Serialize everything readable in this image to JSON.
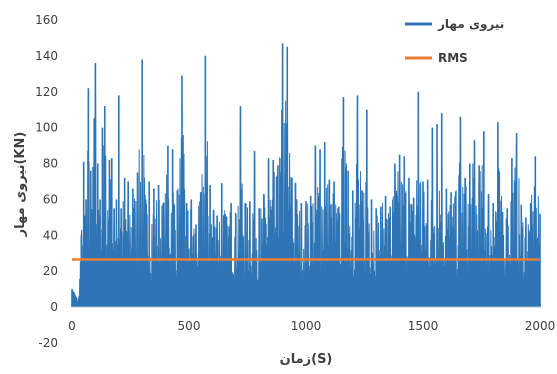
{
  "chart_data": {
    "type": "line",
    "xlabel": "زمان(S)",
    "ylabel": "نیروی مهار(KN)",
    "xlim": [
      0,
      2000
    ],
    "ylim": [
      -20,
      160
    ],
    "x_ticks": [
      "0",
      "500",
      "1000",
      "1500",
      "2000"
    ],
    "y_ticks": [
      "-20",
      "0",
      "20",
      "40",
      "60",
      "80",
      "100",
      "120",
      "140",
      "160"
    ],
    "grid": false,
    "legend_position": "top-right",
    "colors": {
      "series": "#2E75B6",
      "rms": "#ED7D31"
    },
    "series": [
      {
        "name": "نیروی مهار",
        "x": [
          0,
          10,
          20,
          25,
          30,
          40,
          50,
          55,
          60,
          70,
          80,
          90,
          95,
          100,
          110,
          115,
          120,
          130,
          140,
          160,
          170,
          180,
          190,
          200,
          210,
          225,
          240,
          260,
          280,
          300,
          315,
          330,
          350,
          370,
          390,
          410,
          430,
          450,
          470,
          490,
          510,
          530,
          550,
          570,
          590,
          605,
          620,
          640,
          660,
          680,
          700,
          720,
          740,
          760,
          780,
          800,
          820,
          840,
          860,
          880,
          900,
          920,
          940,
          955,
          960,
          980,
          1000,
          1020,
          1040,
          1060,
          1080,
          1100,
          1120,
          1140,
          1160,
          1180,
          1200,
          1220,
          1240,
          1260,
          1280,
          1300,
          1320,
          1340,
          1360,
          1380,
          1400,
          1420,
          1440,
          1460,
          1480,
          1500,
          1520,
          1540,
          1560,
          1580,
          1600,
          1620,
          1640,
          1660,
          1680,
          1700,
          1720,
          1740,
          1760,
          1780,
          1800,
          1820,
          1840,
          1860,
          1880,
          1900,
          1920,
          1940,
          1960,
          1980,
          2000
        ],
        "peaks": [
          10,
          8,
          5,
          3,
          6,
          40,
          81,
          51,
          60,
          122,
          76,
          78,
          105,
          136,
          80,
          50,
          60,
          100,
          112,
          82,
          83,
          55,
          60,
          118,
          55,
          72,
          70,
          66,
          75,
          138,
          60,
          70,
          66,
          68,
          58,
          90,
          88,
          65,
          129,
          58,
          60,
          46,
          64,
          140,
          68,
          54,
          51,
          69,
          50,
          58,
          52,
          112,
          58,
          59,
          87,
          55,
          63,
          83,
          82,
          79,
          147,
          145,
          72,
          69,
          60,
          58,
          59,
          62,
          90,
          88,
          92,
          71,
          70,
          56,
          117,
          76,
          65,
          118,
          65,
          110,
          60,
          55,
          56,
          62,
          56,
          80,
          85,
          84,
          72,
          61,
          120,
          70,
          71,
          100,
          102,
          108,
          66,
          64,
          64,
          106,
          72,
          80,
          93,
          79,
          98,
          63,
          58,
          103,
          53,
          55,
          83,
          97,
          57,
          50,
          58,
          84,
          52
        ],
        "troughs": [
          0,
          0,
          0,
          0,
          0,
          0,
          0,
          0,
          0,
          0,
          0,
          0,
          0,
          0,
          0,
          0,
          0,
          0,
          0,
          0,
          0,
          0,
          0,
          0,
          0,
          0,
          0,
          0,
          0,
          0,
          0,
          0,
          0,
          0,
          0,
          0,
          0,
          0,
          0,
          0,
          0,
          0,
          0,
          0,
          0,
          0,
          0,
          0,
          0,
          0,
          0,
          0,
          0,
          0,
          0,
          0,
          0,
          0,
          0,
          0,
          0,
          0,
          0,
          0,
          0,
          0,
          0,
          0,
          0,
          0,
          0,
          0,
          0,
          0,
          0,
          0,
          0,
          0,
          0,
          0,
          0,
          0,
          0,
          0,
          0,
          0,
          0,
          0,
          0,
          0,
          0,
          0,
          0,
          0,
          0,
          0,
          0,
          0,
          0,
          0,
          0,
          0,
          0,
          0,
          0,
          0,
          0,
          0,
          0,
          0,
          0,
          0,
          0,
          0,
          0,
          0,
          0
        ]
      },
      {
        "name": "RMS",
        "x": [
          0,
          2000
        ],
        "values": [
          26.5,
          26.5
        ]
      }
    ]
  }
}
